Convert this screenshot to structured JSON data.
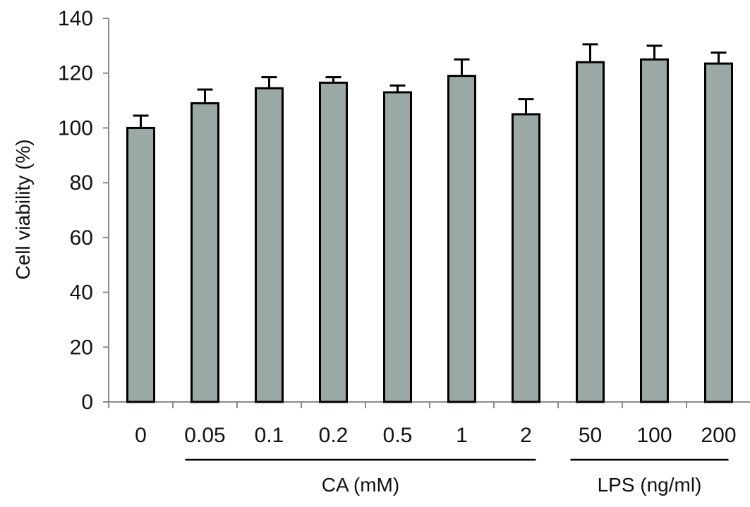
{
  "chart_data": {
    "type": "bar",
    "ylabel": "Cell viability (%)",
    "xlabel": "",
    "ylim": [
      0,
      140
    ],
    "yticks": [
      "0",
      "20",
      "40",
      "60",
      "80",
      "100",
      "120",
      "140"
    ],
    "categories": [
      "0",
      "0.05",
      "0.1",
      "0.2",
      "0.5",
      "1",
      "2",
      "50",
      "100",
      "200"
    ],
    "values": [
      100,
      109,
      114.5,
      116.5,
      113,
      119,
      105,
      124,
      125,
      123.5
    ],
    "errors": [
      4.5,
      5,
      4,
      2,
      2.5,
      6,
      5.5,
      6.5,
      5,
      4
    ],
    "groups": [
      {
        "label": "CA (mM)",
        "start": 1,
        "end": 6
      },
      {
        "label": "LPS (ng/ml)",
        "start": 7,
        "end": 9
      }
    ],
    "bar_color": "#9aa8a6",
    "grid": false
  }
}
